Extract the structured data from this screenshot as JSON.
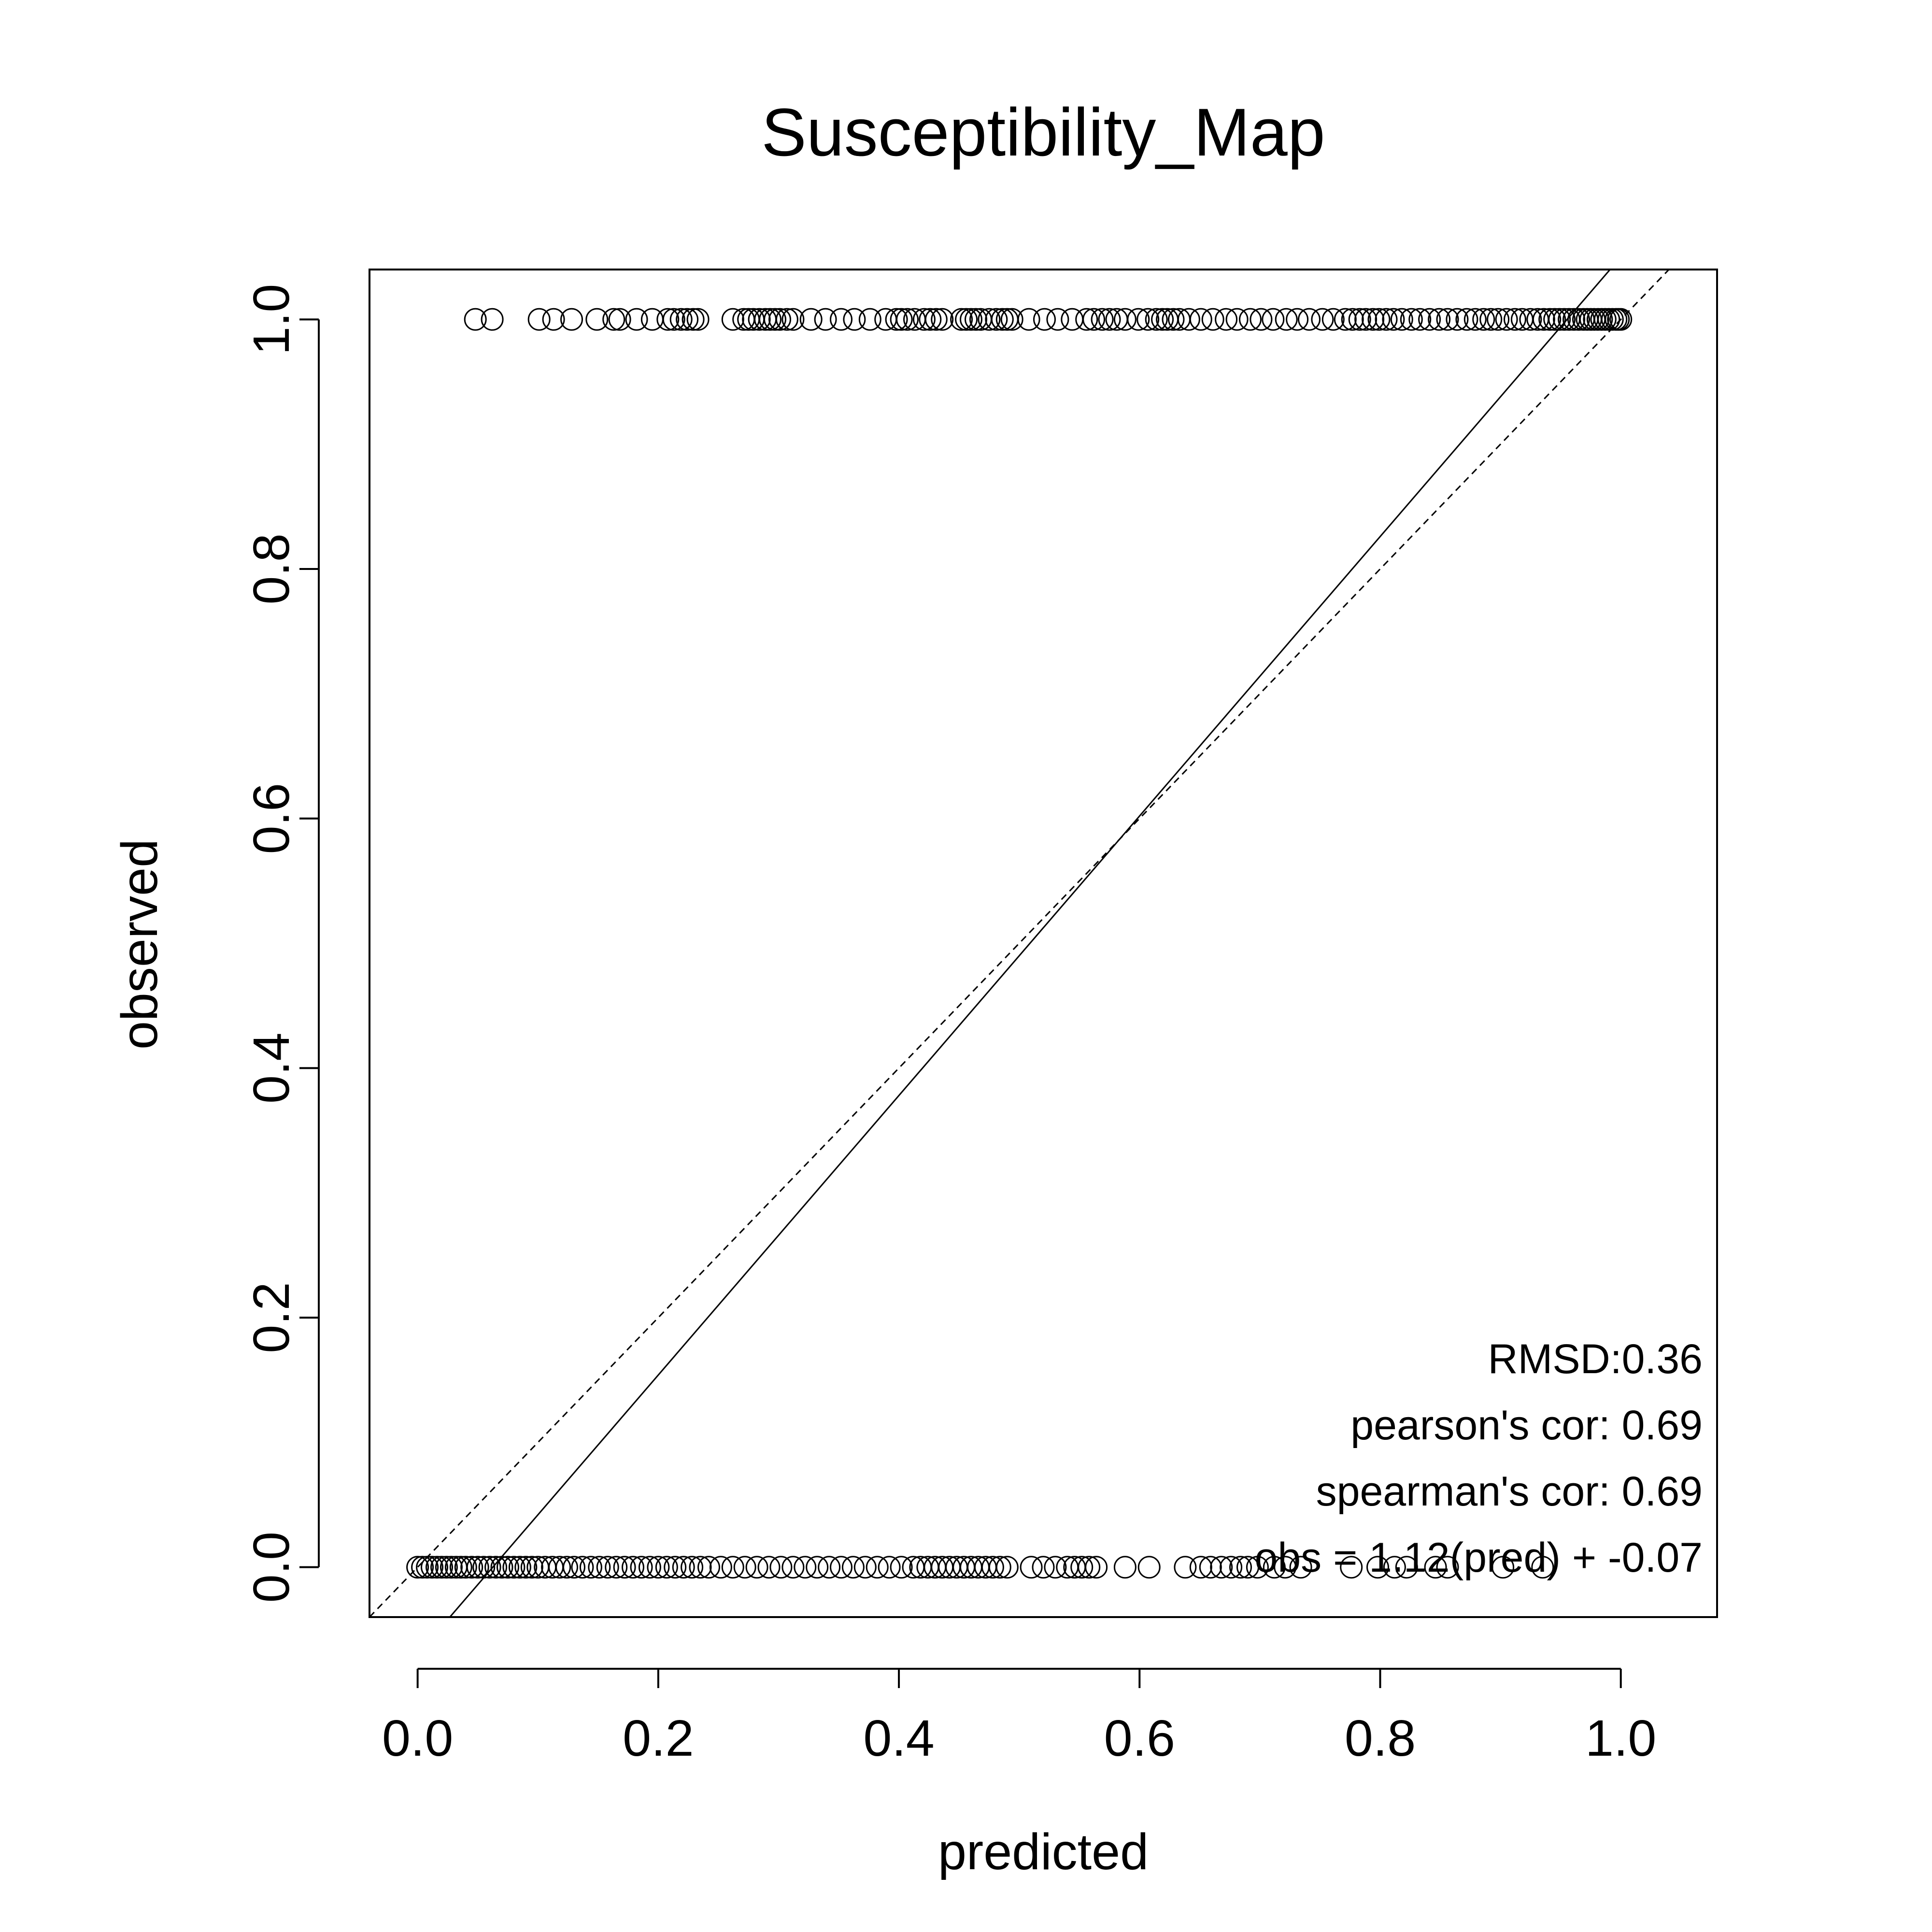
{
  "chart_data": {
    "type": "scatter",
    "title": "Susceptibility_Map",
    "xlabel": "predicted",
    "ylabel": "observed",
    "xlim": [
      -0.04,
      1.08
    ],
    "ylim": [
      -0.04,
      1.04
    ],
    "xticks": [
      "0.0",
      "0.2",
      "0.4",
      "0.6",
      "0.8",
      "1.0"
    ],
    "yticks": [
      "0.0",
      "0.2",
      "0.4",
      "0.6",
      "0.8",
      "1.0"
    ],
    "grid": false,
    "marker": "open-circle",
    "reference_line": {
      "style": "dashed",
      "slope": 1,
      "intercept": 0
    },
    "fit_line": {
      "style": "solid",
      "slope": 1.12,
      "intercept": -0.07
    },
    "annotations": [
      "RMSD:0.36",
      "pearson's cor: 0.69",
      "spearman's cor: 0.69",
      "obs = 1.12(pred) + -0.07"
    ],
    "series": [
      {
        "observed": 1,
        "predicted": [
          0.048,
          0.062,
          0.101,
          0.113,
          0.128,
          0.149,
          0.163,
          0.168,
          0.182,
          0.195,
          0.208,
          0.213,
          0.219,
          0.224,
          0.229,
          0.233,
          0.262,
          0.271,
          0.275,
          0.279,
          0.284,
          0.289,
          0.293,
          0.297,
          0.301,
          0.307,
          0.312,
          0.327,
          0.339,
          0.352,
          0.363,
          0.376,
          0.389,
          0.398,
          0.402,
          0.407,
          0.413,
          0.421,
          0.426,
          0.431,
          0.436,
          0.452,
          0.456,
          0.46,
          0.464,
          0.468,
          0.475,
          0.481,
          0.486,
          0.49,
          0.494,
          0.508,
          0.521,
          0.532,
          0.544,
          0.556,
          0.562,
          0.569,
          0.575,
          0.581,
          0.588,
          0.599,
          0.607,
          0.614,
          0.619,
          0.623,
          0.628,
          0.633,
          0.641,
          0.651,
          0.661,
          0.672,
          0.681,
          0.692,
          0.701,
          0.711,
          0.722,
          0.731,
          0.741,
          0.752,
          0.761,
          0.771,
          0.777,
          0.783,
          0.788,
          0.794,
          0.799,
          0.805,
          0.811,
          0.818,
          0.826,
          0.833,
          0.841,
          0.849,
          0.856,
          0.864,
          0.872,
          0.879,
          0.886,
          0.892,
          0.898,
          0.905,
          0.912,
          0.918,
          0.925,
          0.931,
          0.936,
          0.941,
          0.945,
          0.949,
          0.953,
          0.957,
          0.961,
          0.965,
          0.969,
          0.972,
          0.975,
          0.978,
          0.981,
          0.984,
          0.987,
          0.99,
          0.993,
          0.996,
          0.998,
          1.0
        ]
      },
      {
        "observed": 0,
        "predicted": [
          0.0,
          0.004,
          0.008,
          0.012,
          0.016,
          0.02,
          0.024,
          0.028,
          0.032,
          0.036,
          0.04,
          0.045,
          0.05,
          0.055,
          0.06,
          0.065,
          0.07,
          0.075,
          0.08,
          0.085,
          0.09,
          0.095,
          0.1,
          0.106,
          0.112,
          0.118,
          0.124,
          0.13,
          0.137,
          0.144,
          0.151,
          0.158,
          0.165,
          0.172,
          0.179,
          0.186,
          0.193,
          0.2,
          0.207,
          0.214,
          0.221,
          0.228,
          0.235,
          0.242,
          0.252,
          0.262,
          0.272,
          0.282,
          0.292,
          0.302,
          0.312,
          0.322,
          0.332,
          0.342,
          0.352,
          0.362,
          0.372,
          0.382,
          0.392,
          0.402,
          0.412,
          0.418,
          0.424,
          0.43,
          0.436,
          0.442,
          0.448,
          0.454,
          0.46,
          0.466,
          0.472,
          0.478,
          0.484,
          0.49,
          0.51,
          0.52,
          0.53,
          0.54,
          0.546,
          0.552,
          0.558,
          0.564,
          0.588,
          0.608,
          0.638,
          0.651,
          0.659,
          0.668,
          0.676,
          0.684,
          0.69,
          0.698,
          0.712,
          0.721,
          0.734,
          0.776,
          0.798,
          0.812,
          0.822,
          0.846,
          0.856,
          0.902,
          0.935
        ]
      }
    ]
  }
}
